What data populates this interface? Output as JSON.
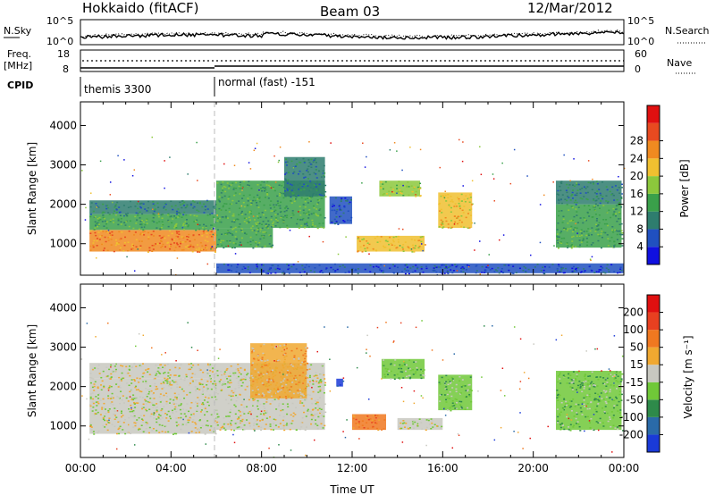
{
  "header": {
    "title": "Hokkaido (fitACF)",
    "beam": "Beam 03",
    "date": "12/Mar/2012"
  },
  "top_panels": {
    "nsky": {
      "label": "N.Sky",
      "ticks": [
        "10^5",
        "10^0"
      ]
    },
    "nsearch": {
      "label": "N.Search",
      "ticks": [
        "10^5",
        "10^0"
      ]
    },
    "freq": {
      "label_line1": "Freq.",
      "label_line2": "[MHz]",
      "ticks": [
        "18",
        "8"
      ]
    },
    "nave": {
      "label": "Nave",
      "ticks": [
        "60",
        "0"
      ]
    },
    "cpid": {
      "label": "CPID",
      "modes": [
        {
          "name": "themis 3300",
          "start_hour": 0,
          "end_hour": 6
        },
        {
          "name": "normal (fast) -151",
          "start_hour": 6,
          "end_hour": 24
        }
      ]
    }
  },
  "chart_data": [
    {
      "type": "heatmap",
      "quantity": "power",
      "ylabel": "Slant Range [km]",
      "xlabel": "",
      "ylim": [
        200,
        4600
      ],
      "yticks": [
        "1000",
        "2000",
        "3000",
        "4000"
      ],
      "xlim": [
        0,
        24
      ],
      "colorbar": {
        "label": "Power [dB]",
        "ticks": [
          "4",
          "8",
          "12",
          "16",
          "20",
          "24",
          "28"
        ],
        "colors": [
          "#1010e0",
          "#2050c0",
          "#2e7d6e",
          "#3aa04a",
          "#8cc83c",
          "#f0c030",
          "#f08a20",
          "#e84a20",
          "#e01010"
        ]
      },
      "regions": [
        {
          "t0": 0.4,
          "t1": 6.0,
          "r0": 800,
          "r1": 1350,
          "level": 6
        },
        {
          "t0": 0.4,
          "t1": 6.0,
          "r0": 1350,
          "r1": 1750,
          "level": 3
        },
        {
          "t0": 0.4,
          "t1": 6.0,
          "r0": 1750,
          "r1": 2100,
          "level": 2
        },
        {
          "t0": 6.0,
          "t1": 8.5,
          "r0": 900,
          "r1": 1400,
          "level": 3
        },
        {
          "t0": 6.0,
          "t1": 10.8,
          "r0": 1400,
          "r1": 2600,
          "level": 3
        },
        {
          "t0": 9.0,
          "t1": 10.8,
          "r0": 2200,
          "r1": 3200,
          "level": 2
        },
        {
          "t0": 11.0,
          "t1": 12.0,
          "r0": 1500,
          "r1": 2200,
          "level": 1
        },
        {
          "t0": 12.2,
          "t1": 15.2,
          "r0": 800,
          "r1": 1200,
          "level": 5
        },
        {
          "t0": 13.2,
          "t1": 15.0,
          "r0": 2200,
          "r1": 2600,
          "level": 4
        },
        {
          "t0": 15.8,
          "t1": 17.3,
          "r0": 1400,
          "r1": 2300,
          "level": 5
        },
        {
          "t0": 21.0,
          "t1": 23.9,
          "r0": 900,
          "r1": 2000,
          "level": 3
        },
        {
          "t0": 21.0,
          "t1": 23.9,
          "r0": 2000,
          "r1": 2600,
          "level": 2
        },
        {
          "t0": 6.0,
          "t1": 24.0,
          "r0": 250,
          "r1": 500,
          "level": 1
        }
      ]
    },
    {
      "type": "heatmap",
      "quantity": "velocity",
      "ylabel": "Slant Range [km]",
      "xlabel": "Time UT",
      "ylim": [
        200,
        4600
      ],
      "yticks": [
        "1000",
        "2000",
        "3000",
        "4000"
      ],
      "xlim": [
        0,
        24
      ],
      "xticks": [
        "00:00",
        "04:00",
        "08:00",
        "12:00",
        "16:00",
        "20:00",
        "00:00"
      ],
      "colorbar": {
        "label": "Velocity [m s⁻¹]",
        "ticks": [
          "200",
          "100",
          "50",
          "15",
          "-15",
          "-50",
          "-100",
          "-200"
        ],
        "colors": [
          "#1a3ad8",
          "#2a6aa8",
          "#2e8a4a",
          "#70c838",
          "#c8c8c0",
          "#f0a830",
          "#f07820",
          "#e84020",
          "#e01010"
        ]
      },
      "regions": [
        {
          "t0": 0.4,
          "t1": 6.0,
          "r0": 800,
          "r1": 2200,
          "level": 4
        },
        {
          "t0": 0.4,
          "t1": 6.0,
          "r0": 2200,
          "r1": 2600,
          "level": 4
        },
        {
          "t0": 6.0,
          "t1": 10.8,
          "r0": 900,
          "r1": 2600,
          "level": 4
        },
        {
          "t0": 7.5,
          "t1": 10.0,
          "r0": 1700,
          "r1": 3100,
          "level": 5
        },
        {
          "t0": 12.0,
          "t1": 13.5,
          "r0": 900,
          "r1": 1300,
          "level": 6
        },
        {
          "t0": 13.3,
          "t1": 15.2,
          "r0": 2200,
          "r1": 2700,
          "level": 3
        },
        {
          "t0": 14.0,
          "t1": 16.0,
          "r0": 900,
          "r1": 1200,
          "level": 4
        },
        {
          "t0": 15.8,
          "t1": 17.3,
          "r0": 1400,
          "r1": 2300,
          "level": 3
        },
        {
          "t0": 21.0,
          "t1": 23.9,
          "r0": 900,
          "r1": 2400,
          "level": 3
        },
        {
          "t0": 11.3,
          "t1": 11.6,
          "r0": 2000,
          "r1": 2200,
          "level": 0
        }
      ]
    }
  ]
}
